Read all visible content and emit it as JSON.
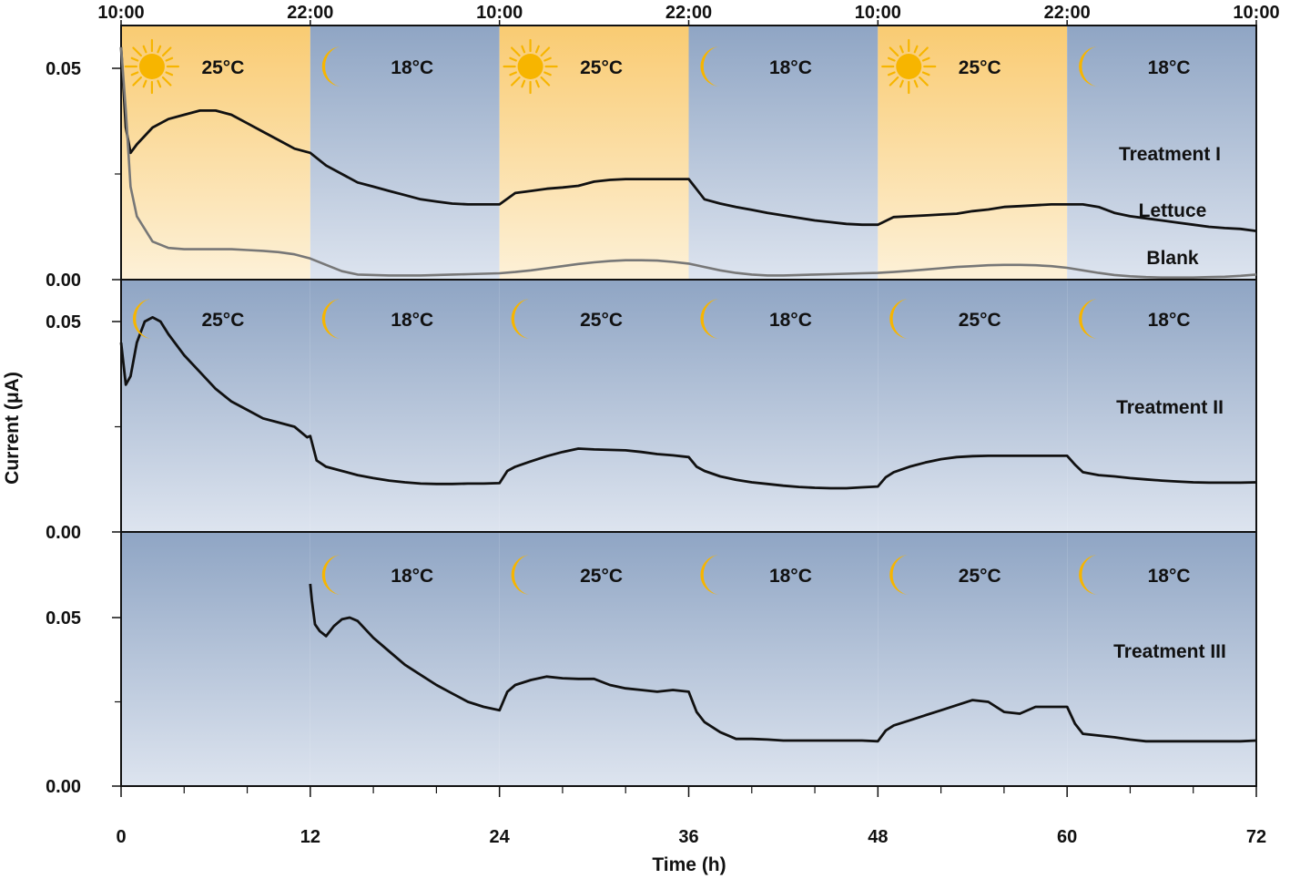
{
  "chart_data": [
    {
      "type": "line",
      "panel": "Treatment I",
      "label": "Treatment I",
      "ylim": [
        0,
        0.06
      ],
      "yticks": [
        "0.00",
        "0.05"
      ],
      "ytick_values": [
        0.0,
        0.05
      ],
      "periods": [
        {
          "start": 0,
          "end": 12,
          "icon": "sun-icon",
          "temp": "25°C",
          "light": true
        },
        {
          "start": 12,
          "end": 24,
          "icon": "moon-icon",
          "temp": "18°C",
          "light": false
        },
        {
          "start": 24,
          "end": 36,
          "icon": "sun-icon",
          "temp": "25°C",
          "light": true
        },
        {
          "start": 36,
          "end": 48,
          "icon": "moon-icon",
          "temp": "18°C",
          "light": false
        },
        {
          "start": 48,
          "end": 60,
          "icon": "sun-icon",
          "temp": "25°C",
          "light": true
        },
        {
          "start": 60,
          "end": 72,
          "icon": "moon-icon",
          "temp": "18°C",
          "light": false
        }
      ],
      "series": [
        {
          "name": "Lettuce",
          "color": "#111111",
          "x": [
            0,
            0.3,
            0.6,
            1,
            2,
            3,
            4,
            5,
            6,
            7,
            8,
            9,
            10,
            11,
            12,
            13,
            14,
            15,
            16,
            17,
            18,
            19,
            20,
            21,
            22,
            23,
            24,
            25,
            26,
            27,
            28,
            29,
            30,
            31,
            32,
            33,
            34,
            35,
            36,
            37,
            38,
            39,
            40,
            41,
            42,
            43,
            44,
            45,
            46,
            47,
            48,
            49,
            50,
            51,
            52,
            53,
            54,
            55,
            56,
            57,
            58,
            59,
            60,
            61,
            62,
            63,
            64,
            65,
            66,
            67,
            68,
            69,
            70,
            71,
            72
          ],
          "y": [
            0.055,
            0.036,
            0.03,
            0.032,
            0.036,
            0.038,
            0.039,
            0.04,
            0.04,
            0.039,
            0.037,
            0.035,
            0.033,
            0.031,
            0.03,
            0.027,
            0.025,
            0.023,
            0.022,
            0.021,
            0.02,
            0.019,
            0.0185,
            0.018,
            0.0178,
            0.0178,
            0.0178,
            0.0205,
            0.021,
            0.0215,
            0.0218,
            0.0222,
            0.0232,
            0.0236,
            0.0238,
            0.0238,
            0.0238,
            0.0238,
            0.0238,
            0.019,
            0.018,
            0.0172,
            0.0165,
            0.0158,
            0.0152,
            0.0146,
            0.014,
            0.0136,
            0.0132,
            0.013,
            0.013,
            0.0148,
            0.015,
            0.0152,
            0.0154,
            0.0156,
            0.0162,
            0.0166,
            0.0172,
            0.0174,
            0.0176,
            0.0178,
            0.0178,
            0.0178,
            0.0172,
            0.0158,
            0.015,
            0.0145,
            0.014,
            0.0135,
            0.013,
            0.0125,
            0.0122,
            0.012,
            0.0115
          ]
        },
        {
          "name": "Blank",
          "color": "#777777",
          "x": [
            0,
            0.3,
            0.6,
            1,
            2,
            3,
            4,
            5,
            6,
            7,
            8,
            9,
            10,
            11,
            12,
            13,
            14,
            15,
            16,
            17,
            18,
            19,
            20,
            21,
            22,
            23,
            24,
            25,
            26,
            27,
            28,
            29,
            30,
            31,
            32,
            33,
            34,
            35,
            36,
            37,
            38,
            39,
            40,
            41,
            42,
            43,
            44,
            45,
            46,
            47,
            48,
            49,
            50,
            51,
            52,
            53,
            54,
            55,
            56,
            57,
            58,
            59,
            60,
            61,
            62,
            63,
            64,
            65,
            66,
            67,
            68,
            69,
            70,
            71,
            72
          ],
          "y": [
            0.055,
            0.04,
            0.022,
            0.015,
            0.009,
            0.0075,
            0.0072,
            0.0072,
            0.0072,
            0.0072,
            0.007,
            0.0068,
            0.0065,
            0.006,
            0.005,
            0.0035,
            0.002,
            0.0012,
            0.0011,
            0.001,
            0.001,
            0.001,
            0.0011,
            0.0012,
            0.0013,
            0.0014,
            0.0015,
            0.0018,
            0.0022,
            0.0027,
            0.0032,
            0.0037,
            0.0041,
            0.0044,
            0.0046,
            0.0046,
            0.0045,
            0.0042,
            0.0038,
            0.003,
            0.0022,
            0.0016,
            0.0012,
            0.001,
            0.001,
            0.0011,
            0.0012,
            0.0013,
            0.0014,
            0.0015,
            0.0016,
            0.0018,
            0.0021,
            0.0024,
            0.0027,
            0.003,
            0.0032,
            0.0034,
            0.0035,
            0.0035,
            0.0034,
            0.0032,
            0.0028,
            0.0022,
            0.0016,
            0.0011,
            0.0008,
            0.0006,
            0.0005,
            0.0005,
            0.0005,
            0.0006,
            0.0007,
            0.0009,
            0.0012
          ]
        }
      ],
      "series_labels": [
        "Lettuce",
        "Blank"
      ]
    },
    {
      "type": "line",
      "panel": "Treatment II",
      "label": "Treatment II",
      "ylim": [
        0,
        0.06
      ],
      "yticks": [
        "0.00",
        "0.05"
      ],
      "ytick_values": [
        0.0,
        0.05
      ],
      "periods": [
        {
          "start": 0,
          "end": 12,
          "icon": "moon-icon",
          "temp": "25°C",
          "light": false
        },
        {
          "start": 12,
          "end": 24,
          "icon": "moon-icon",
          "temp": "18°C",
          "light": false
        },
        {
          "start": 24,
          "end": 36,
          "icon": "moon-icon",
          "temp": "25°C",
          "light": false
        },
        {
          "start": 36,
          "end": 48,
          "icon": "moon-icon",
          "temp": "18°C",
          "light": false
        },
        {
          "start": 48,
          "end": 60,
          "icon": "moon-icon",
          "temp": "25°C",
          "light": false
        },
        {
          "start": 60,
          "end": 72,
          "icon": "moon-icon",
          "temp": "18°C",
          "light": false
        }
      ],
      "series": [
        {
          "name": "",
          "color": "#111111",
          "x": [
            0,
            0.3,
            0.6,
            1,
            1.5,
            2,
            2.5,
            3,
            4,
            5,
            6,
            7,
            8,
            9,
            10,
            11,
            11.8,
            12,
            12.4,
            13,
            14,
            15,
            16,
            17,
            18,
            19,
            20,
            21,
            22,
            23,
            24,
            24.5,
            25,
            26,
            27,
            28,
            29,
            30,
            31,
            32,
            33,
            34,
            35,
            36,
            36.5,
            37,
            38,
            39,
            40,
            41,
            42,
            43,
            44,
            45,
            46,
            47,
            48,
            48.5,
            49,
            50,
            51,
            52,
            53,
            54,
            55,
            56,
            57,
            58,
            59,
            60,
            60.5,
            61,
            62,
            63,
            64,
            65,
            66,
            67,
            68,
            69,
            70,
            71,
            72
          ],
          "y": [
            0.045,
            0.035,
            0.037,
            0.045,
            0.05,
            0.051,
            0.05,
            0.047,
            0.042,
            0.038,
            0.034,
            0.031,
            0.029,
            0.027,
            0.026,
            0.025,
            0.0225,
            0.0228,
            0.017,
            0.0155,
            0.0145,
            0.0135,
            0.0128,
            0.0122,
            0.0118,
            0.0115,
            0.0114,
            0.0114,
            0.0115,
            0.0115,
            0.0116,
            0.0145,
            0.0155,
            0.0168,
            0.018,
            0.019,
            0.0198,
            0.0196,
            0.0195,
            0.0194,
            0.019,
            0.0185,
            0.0182,
            0.0178,
            0.0155,
            0.0145,
            0.0132,
            0.0124,
            0.0118,
            0.0114,
            0.011,
            0.0107,
            0.0105,
            0.0104,
            0.0104,
            0.0106,
            0.0108,
            0.013,
            0.0142,
            0.0155,
            0.0165,
            0.0173,
            0.0178,
            0.018,
            0.0181,
            0.0181,
            0.0181,
            0.0181,
            0.0181,
            0.0181,
            0.016,
            0.0142,
            0.0135,
            0.0132,
            0.0128,
            0.0125,
            0.0122,
            0.012,
            0.0118,
            0.0117,
            0.0117,
            0.0117,
            0.0118
          ]
        }
      ]
    },
    {
      "type": "line",
      "panel": "Treatment III",
      "label": "Treatment III",
      "ylim": [
        0,
        0.06
      ],
      "yticks": [
        "0.00",
        "0.05"
      ],
      "ytick_values": [
        0.0,
        0.05
      ],
      "periods": [
        {
          "start": 0,
          "end": 12,
          "icon": "",
          "temp": "",
          "light": false
        },
        {
          "start": 12,
          "end": 24,
          "icon": "moon-icon",
          "temp": "18°C",
          "light": false
        },
        {
          "start": 24,
          "end": 36,
          "icon": "moon-icon",
          "temp": "25°C",
          "light": false
        },
        {
          "start": 36,
          "end": 48,
          "icon": "moon-icon",
          "temp": "18°C",
          "light": false
        },
        {
          "start": 48,
          "end": 60,
          "icon": "moon-icon",
          "temp": "25°C",
          "light": false
        },
        {
          "start": 60,
          "end": 72,
          "icon": "moon-icon",
          "temp": "18°C",
          "light": false
        }
      ],
      "series": [
        {
          "name": "",
          "color": "#111111",
          "x": [
            12,
            12.1,
            12.3,
            12.6,
            13,
            13.5,
            14,
            14.5,
            15,
            16,
            17,
            18,
            19,
            20,
            21,
            22,
            23,
            24,
            24.5,
            25,
            26,
            27,
            28,
            29,
            30,
            31,
            32,
            33,
            34,
            35,
            36,
            36.5,
            37,
            38,
            39,
            40,
            41,
            42,
            43,
            44,
            45,
            46,
            47,
            48,
            48.5,
            49,
            50,
            51,
            52,
            53,
            54,
            55,
            56,
            57,
            58,
            59,
            60,
            60.5,
            61,
            62,
            63,
            64,
            65,
            66,
            67,
            68,
            69,
            70,
            71,
            72
          ],
          "y": [
            0.06,
            0.055,
            0.048,
            0.046,
            0.0445,
            0.0475,
            0.0495,
            0.05,
            0.049,
            0.044,
            0.04,
            0.036,
            0.033,
            0.03,
            0.0275,
            0.025,
            0.0235,
            0.0225,
            0.028,
            0.03,
            0.0315,
            0.0325,
            0.032,
            0.0318,
            0.0318,
            0.03,
            0.029,
            0.0285,
            0.028,
            0.0285,
            0.028,
            0.022,
            0.019,
            0.016,
            0.014,
            0.014,
            0.0138,
            0.0135,
            0.0135,
            0.0135,
            0.0135,
            0.0135,
            0.0135,
            0.0133,
            0.0165,
            0.018,
            0.0195,
            0.021,
            0.0225,
            0.024,
            0.0255,
            0.025,
            0.022,
            0.0215,
            0.0235,
            0.0235,
            0.0235,
            0.0185,
            0.0155,
            0.015,
            0.0145,
            0.0138,
            0.0133,
            0.0133,
            0.0133,
            0.0133,
            0.0133,
            0.0133,
            0.0133,
            0.0135
          ]
        }
      ]
    }
  ],
  "x_axis": {
    "label": "Time (h)",
    "ticks": [
      "0",
      "12",
      "24",
      "36",
      "48",
      "60",
      "72"
    ],
    "tick_values": [
      0,
      12,
      24,
      36,
      48,
      60,
      72
    ],
    "xlim": [
      0,
      72
    ]
  },
  "top_axis": {
    "ticks": [
      "10:00",
      "22:00",
      "10:00",
      "22:00",
      "10:00",
      "22:00",
      "10:00"
    ],
    "tick_values": [
      0,
      12,
      24,
      36,
      48,
      60,
      72
    ]
  },
  "y_axis": {
    "label": "Current (μA)"
  },
  "colors": {
    "light_top": "#f9cb72",
    "light_bottom": "#fdf1d8",
    "dark_top": "#8fa5c4",
    "dark_bottom": "#dde4ef",
    "sun": "#f7b500",
    "moon": "#f7b500"
  }
}
